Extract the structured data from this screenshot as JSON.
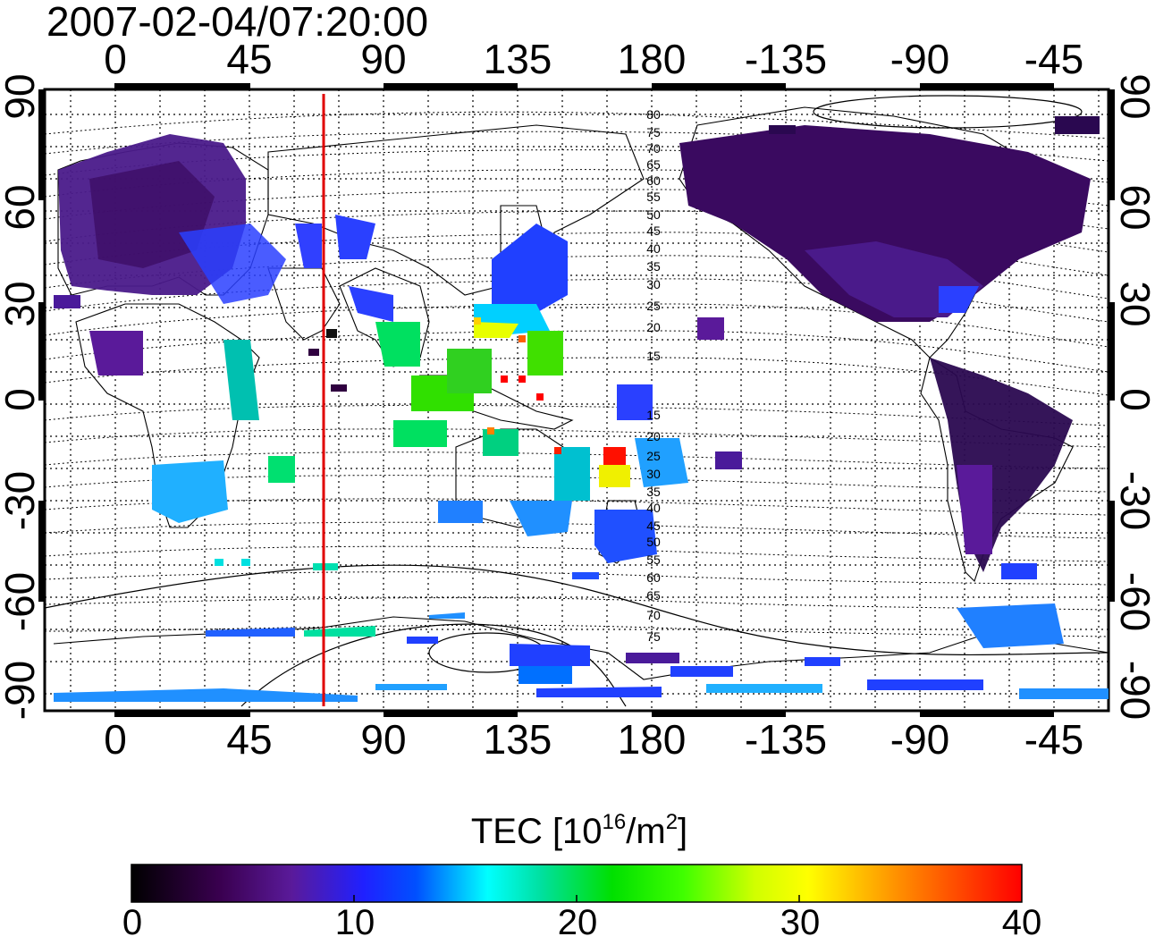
{
  "title": "2007-02-04/07:20:00",
  "map": {
    "top_lon_ticks": [
      "0",
      "45",
      "90",
      "135",
      "180",
      "-135",
      "-90",
      "-45"
    ],
    "bottom_lon_ticks": [
      "0",
      "45",
      "90",
      "135",
      "180",
      "-135",
      "-90",
      "-45"
    ],
    "left_lat_ticks": [
      "90",
      "60",
      "30",
      "0",
      "-30",
      "-60",
      "-90"
    ],
    "right_lat_ticks": [
      "90",
      "60",
      "30",
      "0",
      "-30",
      "-60",
      "-90"
    ],
    "contour_labels": [
      "80",
      "75",
      "70",
      "65",
      "60",
      "55",
      "50",
      "45",
      "40",
      "35",
      "30",
      "25",
      "20",
      "15",
      "15",
      "20",
      "25",
      "30",
      "35",
      "40",
      "45",
      "50",
      "55",
      "60",
      "65",
      "70",
      "75"
    ],
    "meridian_line_color": "#e00000"
  },
  "colorbar": {
    "title_main": "TEC  [10",
    "title_exp": "16",
    "title_mid": "/m",
    "title_exp2": "2",
    "title_end": "]",
    "ticks": [
      "0",
      "10",
      "20",
      "30",
      "40"
    ],
    "range": [
      0,
      40
    ],
    "colormap": [
      "#000000",
      "#3a0050",
      "#5a1a9a",
      "#2020ff",
      "#0080ff",
      "#00ffff",
      "#00e070",
      "#00ff00",
      "#a0ff00",
      "#ffff00",
      "#ff9000",
      "#ff0000"
    ]
  }
}
